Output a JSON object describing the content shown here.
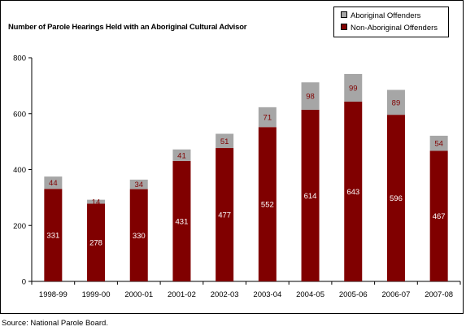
{
  "chart_data": {
    "type": "bar",
    "stacked": true,
    "title": "Number of Parole Hearings Held with an Aboriginal Cultural Advisor",
    "categories": [
      "1998-99",
      "1999-00",
      "2000-01",
      "2001-02",
      "2002-03",
      "2003-04",
      "2004-05",
      "2005-06",
      "2006-07",
      "2007-08"
    ],
    "series": [
      {
        "name": "Non-Aboriginal Offenders",
        "color": "#800000",
        "label_color": "#ffffff",
        "values": [
          331,
          278,
          330,
          431,
          477,
          552,
          614,
          643,
          596,
          467
        ]
      },
      {
        "name": "Aboriginal Offenders",
        "color": "#a6a6a6",
        "label_color": "#800000",
        "values": [
          44,
          14,
          34,
          41,
          51,
          71,
          98,
          99,
          89,
          54
        ]
      }
    ],
    "ylim": [
      0,
      800
    ],
    "yticks": [
      0,
      200,
      400,
      600,
      800
    ],
    "legend_position": "top-right",
    "grid": false
  },
  "source": "Source:  National Parole Board."
}
